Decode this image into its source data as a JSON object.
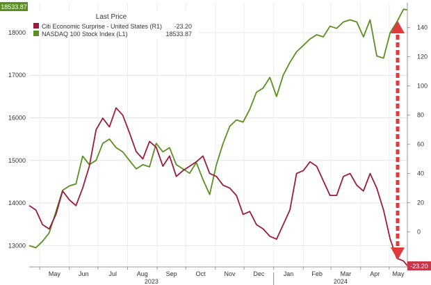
{
  "chart_data": {
    "type": "line",
    "legend": {
      "title": "Last Price",
      "position": "top-left",
      "entries": [
        {
          "name": "Citi Economic Surprise - United States (R1)",
          "value": "-23.20",
          "color": "#9b1b3c"
        },
        {
          "name": "NASDAQ 100 Stock Index (L1)",
          "value": "18533.87",
          "color": "#5a8f1e"
        }
      ]
    },
    "left_axis": {
      "ticks": [
        "18000",
        "17000",
        "16000",
        "15000",
        "14000",
        "13000"
      ],
      "tick_values": [
        18000,
        17000,
        16000,
        15000,
        14000,
        13000
      ],
      "range": [
        12500,
        18700
      ]
    },
    "right_axis": {
      "ticks": [
        "140",
        "120",
        "100",
        "80",
        "60",
        "40",
        "20",
        "0"
      ],
      "tick_values": [
        140,
        120,
        100,
        80,
        60,
        40,
        20,
        0
      ],
      "range": [
        -24,
        157
      ]
    },
    "x_axis": {
      "months": [
        "May",
        "Jun",
        "Jul",
        "Aug",
        "Sep",
        "Oct",
        "Nov",
        "Dec",
        "Jan",
        "Feb",
        "Mar",
        "Apr",
        "May"
      ],
      "years": [
        "2023",
        "2024"
      ],
      "range": [
        "2023-04-20",
        "2024-05-20"
      ]
    },
    "last_value_labels": {
      "left": "18533.87",
      "right": "-23.20"
    },
    "grid": true,
    "series": [
      {
        "name": "NASDAQ 100 Stock Index (L1)",
        "axis": "left",
        "color": "#5a8f1e",
        "x": [
          "2023-04-20",
          "2023-04-27",
          "2023-05-04",
          "2023-05-11",
          "2023-05-18",
          "2023-05-25",
          "2023-06-01",
          "2023-06-08",
          "2023-06-15",
          "2023-06-22",
          "2023-06-29",
          "2023-07-06",
          "2023-07-13",
          "2023-07-20",
          "2023-07-27",
          "2023-08-03",
          "2023-08-10",
          "2023-08-17",
          "2023-08-24",
          "2023-08-31",
          "2023-09-07",
          "2023-09-14",
          "2023-09-21",
          "2023-09-28",
          "2023-10-05",
          "2023-10-12",
          "2023-10-19",
          "2023-10-26",
          "2023-11-02",
          "2023-11-09",
          "2023-11-16",
          "2023-11-23",
          "2023-11-30",
          "2023-12-07",
          "2023-12-14",
          "2023-12-21",
          "2023-12-28",
          "2024-01-04",
          "2024-01-11",
          "2024-01-18",
          "2024-01-25",
          "2024-02-01",
          "2024-02-08",
          "2024-02-15",
          "2024-02-22",
          "2024-02-29",
          "2024-03-07",
          "2024-03-14",
          "2024-03-21",
          "2024-03-28",
          "2024-04-04",
          "2024-04-11",
          "2024-04-18",
          "2024-04-25",
          "2024-05-02",
          "2024-05-09",
          "2024-05-16",
          "2024-05-20"
        ],
        "values": [
          13000,
          12950,
          13100,
          13300,
          13800,
          14300,
          14400,
          14450,
          15100,
          14900,
          15000,
          15400,
          15500,
          15300,
          15200,
          15000,
          14800,
          14900,
          14850,
          15400,
          15200,
          15300,
          14900,
          14800,
          14700,
          14950,
          14550,
          14200,
          14900,
          15400,
          15800,
          15950,
          15900,
          16200,
          16600,
          16700,
          16950,
          16500,
          17000,
          17300,
          17550,
          17700,
          17850,
          17950,
          17900,
          18150,
          18100,
          18250,
          18300,
          18250,
          17900,
          18300,
          17450,
          17400,
          18000,
          18250,
          18550,
          18533.87
        ]
      },
      {
        "name": "Citi Economic Surprise - United States (R1)",
        "axis": "right",
        "color": "#9b1b3c",
        "x": [
          "2023-04-20",
          "2023-04-27",
          "2023-05-04",
          "2023-05-11",
          "2023-05-18",
          "2023-05-25",
          "2023-06-01",
          "2023-06-08",
          "2023-06-15",
          "2023-06-22",
          "2023-06-29",
          "2023-07-06",
          "2023-07-13",
          "2023-07-20",
          "2023-07-27",
          "2023-08-03",
          "2023-08-10",
          "2023-08-17",
          "2023-08-24",
          "2023-08-31",
          "2023-09-07",
          "2023-09-14",
          "2023-09-21",
          "2023-09-28",
          "2023-10-05",
          "2023-10-12",
          "2023-10-19",
          "2023-10-26",
          "2023-11-02",
          "2023-11-09",
          "2023-11-16",
          "2023-11-23",
          "2023-11-30",
          "2023-12-07",
          "2023-12-14",
          "2023-12-21",
          "2023-12-28",
          "2024-01-04",
          "2024-01-11",
          "2024-01-18",
          "2024-01-25",
          "2024-02-01",
          "2024-02-08",
          "2024-02-15",
          "2024-02-22",
          "2024-02-29",
          "2024-03-07",
          "2024-03-14",
          "2024-03-21",
          "2024-03-28",
          "2024-04-04",
          "2024-04-11",
          "2024-04-18",
          "2024-04-25",
          "2024-05-02",
          "2024-05-09",
          "2024-05-16",
          "2024-05-20"
        ],
        "values": [
          18,
          15,
          5,
          2,
          12,
          28,
          22,
          18,
          30,
          45,
          70,
          78,
          72,
          85,
          80,
          68,
          55,
          50,
          62,
          58,
          45,
          52,
          38,
          42,
          45,
          48,
          52,
          40,
          38,
          32,
          30,
          25,
          12,
          14,
          5,
          2,
          -3,
          -5,
          5,
          15,
          40,
          42,
          48,
          45,
          35,
          25,
          25,
          38,
          40,
          32,
          28,
          40,
          30,
          15,
          -5,
          -18,
          -20,
          -23.2
        ]
      }
    ]
  }
}
